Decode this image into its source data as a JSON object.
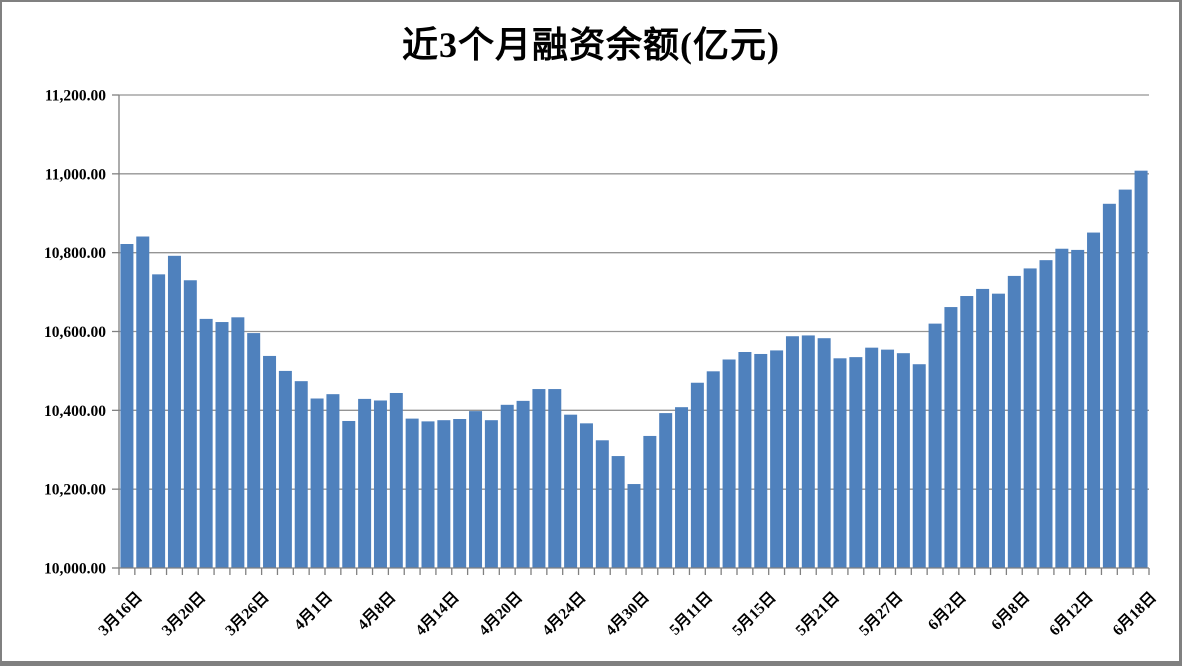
{
  "window": {
    "background": "#FFFFFF",
    "frame_border_color": "#808080"
  },
  "chart_data": {
    "type": "bar",
    "title": "近3个月融资余额(亿元)",
    "xlabel": "",
    "ylabel": "",
    "ylim": [
      10000,
      11200
    ],
    "y_tick_step": 200,
    "y_tick_labels": [
      "10,000.00",
      "10,200.00",
      "10,400.00",
      "10,600.00",
      "10,800.00",
      "11,000.00",
      "11,200.00"
    ],
    "x_tick_labels": [
      "3月16日",
      "3月20日",
      "3月26日",
      "4月1日",
      "4月8日",
      "4月14日",
      "4月20日",
      "4月24日",
      "4月30日",
      "5月11日",
      "5月15日",
      "5月21日",
      "5月27日",
      "6月2日",
      "6月8日",
      "6月12日",
      "6月18日"
    ],
    "x_label_every_n_bars": 4,
    "grid": true,
    "legend_position": "none",
    "bar_color": "#4F81BD",
    "gridline_color": "#949494",
    "axis_color": "#808080",
    "text_color": "#000000",
    "values": [
      10822,
      10841,
      10745,
      10792,
      10730,
      10632,
      10624,
      10636,
      10596,
      10538,
      10500,
      10474,
      10430,
      10441,
      10373,
      10429,
      10425,
      10444,
      10379,
      10372,
      10375,
      10378,
      10398,
      10375,
      10414,
      10424,
      10454,
      10454,
      10389,
      10367,
      10324,
      10284,
      10213,
      10335,
      10393,
      10408,
      10470,
      10499,
      10529,
      10548,
      10543,
      10552,
      10588,
      10590,
      10583,
      10532,
      10535,
      10559,
      10554,
      10545,
      10517,
      10620,
      10662,
      10690,
      10708,
      10696,
      10741,
      10760,
      10781,
      10810,
      10807,
      10851,
      10924,
      10960,
      11008
    ]
  }
}
